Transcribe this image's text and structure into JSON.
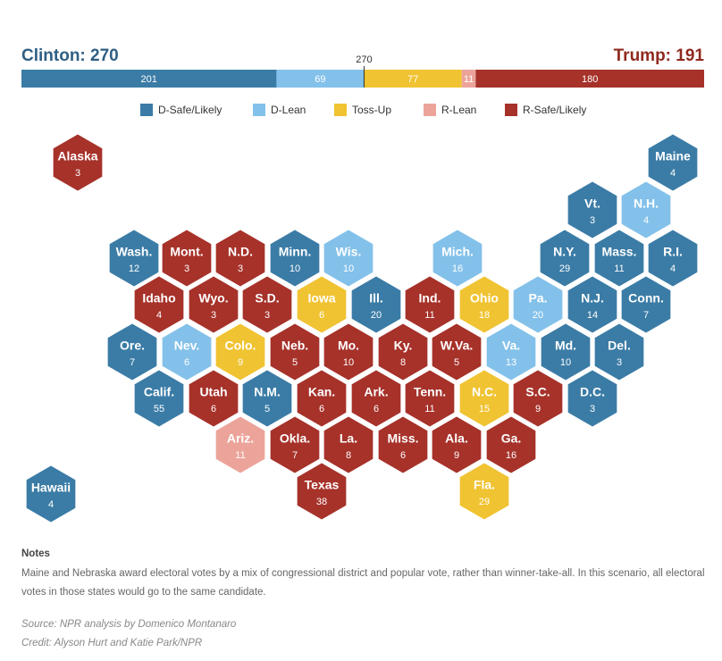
{
  "chart_data": {
    "type": "hexmap",
    "left_title": "Clinton: 270",
    "right_title": "Trump: 191",
    "threshold": 270,
    "xlim": [
      0,
      538
    ],
    "categories": [
      {
        "name": "D-Safe/Likely",
        "color": "#3b7ca6",
        "total": 201
      },
      {
        "name": "D-Lean",
        "color": "#83c1ea",
        "total": 69
      },
      {
        "name": "Toss-Up",
        "color": "#f0c332",
        "total": 77
      },
      {
        "name": "R-Lean",
        "color": "#eca49a",
        "total": 11
      },
      {
        "name": "R-Safe/Likely",
        "color": "#a6322a",
        "total": 180
      }
    ],
    "states": [
      {
        "name": "Alaska",
        "votes": 3,
        "category": 4
      },
      {
        "name": "Maine",
        "votes": 4,
        "category": 0
      },
      {
        "name": "Vt.",
        "votes": 3,
        "category": 0
      },
      {
        "name": "N.H.",
        "votes": 4,
        "category": 1
      },
      {
        "name": "Wash.",
        "votes": 12,
        "category": 0
      },
      {
        "name": "Mont.",
        "votes": 3,
        "category": 4
      },
      {
        "name": "N.D.",
        "votes": 3,
        "category": 4
      },
      {
        "name": "Minn.",
        "votes": 10,
        "category": 0
      },
      {
        "name": "Wis.",
        "votes": 10,
        "category": 1
      },
      {
        "name": "Mich.",
        "votes": 16,
        "category": 1
      },
      {
        "name": "N.Y.",
        "votes": 29,
        "category": 0
      },
      {
        "name": "Mass.",
        "votes": 11,
        "category": 0
      },
      {
        "name": "R.I.",
        "votes": 4,
        "category": 0
      },
      {
        "name": "Idaho",
        "votes": 4,
        "category": 4
      },
      {
        "name": "Wyo.",
        "votes": 3,
        "category": 4
      },
      {
        "name": "S.D.",
        "votes": 3,
        "category": 4
      },
      {
        "name": "Iowa",
        "votes": 6,
        "category": 2
      },
      {
        "name": "Ill.",
        "votes": 20,
        "category": 0
      },
      {
        "name": "Ind.",
        "votes": 11,
        "category": 4
      },
      {
        "name": "Ohio",
        "votes": 18,
        "category": 2
      },
      {
        "name": "Pa.",
        "votes": 20,
        "category": 1
      },
      {
        "name": "N.J.",
        "votes": 14,
        "category": 0
      },
      {
        "name": "Conn.",
        "votes": 7,
        "category": 0
      },
      {
        "name": "Ore.",
        "votes": 7,
        "category": 0
      },
      {
        "name": "Nev.",
        "votes": 6,
        "category": 1
      },
      {
        "name": "Colo.",
        "votes": 9,
        "category": 2
      },
      {
        "name": "Neb.",
        "votes": 5,
        "category": 4
      },
      {
        "name": "Mo.",
        "votes": 10,
        "category": 4
      },
      {
        "name": "Ky.",
        "votes": 8,
        "category": 4
      },
      {
        "name": "W.Va.",
        "votes": 5,
        "category": 4
      },
      {
        "name": "Va.",
        "votes": 13,
        "category": 1
      },
      {
        "name": "Md.",
        "votes": 10,
        "category": 0
      },
      {
        "name": "Del.",
        "votes": 3,
        "category": 0
      },
      {
        "name": "Calif.",
        "votes": 55,
        "category": 0
      },
      {
        "name": "Utah",
        "votes": 6,
        "category": 4
      },
      {
        "name": "N.M.",
        "votes": 5,
        "category": 0
      },
      {
        "name": "Kan.",
        "votes": 6,
        "category": 4
      },
      {
        "name": "Ark.",
        "votes": 6,
        "category": 4
      },
      {
        "name": "Tenn.",
        "votes": 11,
        "category": 4
      },
      {
        "name": "N.C.",
        "votes": 15,
        "category": 2
      },
      {
        "name": "S.C.",
        "votes": 9,
        "category": 4
      },
      {
        "name": "D.C.",
        "votes": 3,
        "category": 0
      },
      {
        "name": "Ariz.",
        "votes": 11,
        "category": 3
      },
      {
        "name": "Okla.",
        "votes": 7,
        "category": 4
      },
      {
        "name": "La.",
        "votes": 8,
        "category": 4
      },
      {
        "name": "Miss.",
        "votes": 6,
        "category": 4
      },
      {
        "name": "Ala.",
        "votes": 9,
        "category": 4
      },
      {
        "name": "Ga.",
        "votes": 16,
        "category": 4
      },
      {
        "name": "Texas",
        "votes": 38,
        "category": 4
      },
      {
        "name": "Fla.",
        "votes": 29,
        "category": 2
      },
      {
        "name": "Hawaii",
        "votes": 4,
        "category": 0
      }
    ]
  },
  "notes": {
    "title": "Notes",
    "text": "Maine and Nebraska award electoral votes by a mix of congressional district and popular vote, rather than winner-take-all. In this scenario, all electoral votes in those states would go to the same candidate.",
    "source": "Source: NPR analysis by Domenico Montanaro",
    "credit": "Credit: Alyson Hurt and Katie Park/NPR"
  }
}
